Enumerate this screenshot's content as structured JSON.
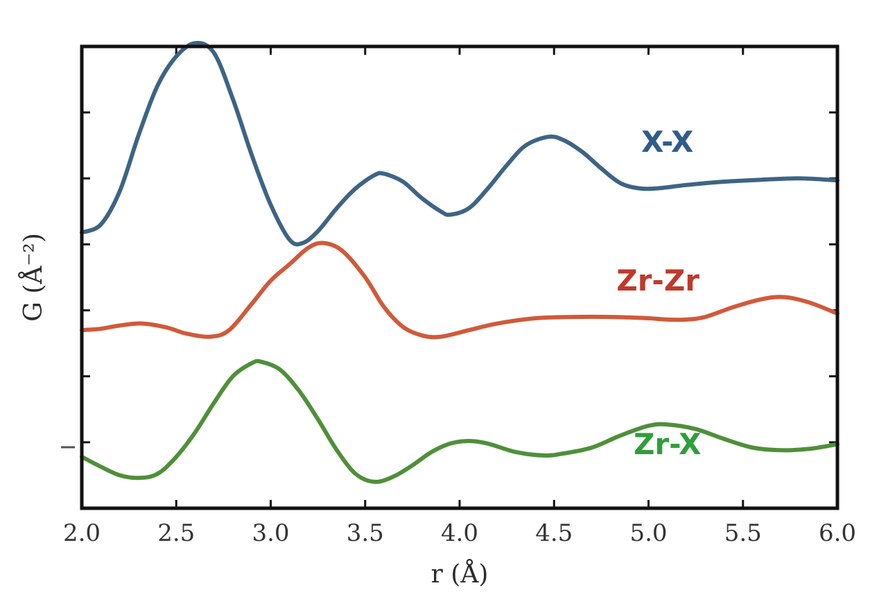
{
  "chart_data": {
    "type": "line",
    "xlabel": "r (Å)",
    "ylabel": "G (Å⁻²)",
    "xlim": [
      2.0,
      6.0
    ],
    "ylim": [
      0,
      7
    ],
    "x_ticks": [
      "2.0",
      "2.5",
      "3.0",
      "3.5",
      "4.0",
      "4.5",
      "5.0",
      "5.5",
      "6.0"
    ],
    "y_tick_values": [
      1,
      2,
      3,
      4,
      5,
      6
    ],
    "y_tick_labels": [],
    "grid": false,
    "legend": "inline labels on the right",
    "series": [
      {
        "name": "X-X",
        "color": "#3E6484",
        "points": [
          [
            2.0,
            4.18
          ],
          [
            2.1,
            4.3
          ],
          [
            2.2,
            4.8
          ],
          [
            2.3,
            5.65
          ],
          [
            2.4,
            6.4
          ],
          [
            2.5,
            6.85
          ],
          [
            2.6,
            7.05
          ],
          [
            2.7,
            6.9
          ],
          [
            2.8,
            6.2
          ],
          [
            2.9,
            5.35
          ],
          [
            3.0,
            4.6
          ],
          [
            3.1,
            4.07
          ],
          [
            3.17,
            4.02
          ],
          [
            3.25,
            4.2
          ],
          [
            3.35,
            4.55
          ],
          [
            3.45,
            4.85
          ],
          [
            3.55,
            5.05
          ],
          [
            3.6,
            5.07
          ],
          [
            3.7,
            4.95
          ],
          [
            3.8,
            4.7
          ],
          [
            3.9,
            4.5
          ],
          [
            3.95,
            4.45
          ],
          [
            4.05,
            4.55
          ],
          [
            4.15,
            4.85
          ],
          [
            4.25,
            5.2
          ],
          [
            4.35,
            5.5
          ],
          [
            4.47,
            5.63
          ],
          [
            4.55,
            5.58
          ],
          [
            4.65,
            5.4
          ],
          [
            4.75,
            5.15
          ],
          [
            4.85,
            4.93
          ],
          [
            4.95,
            4.85
          ],
          [
            5.05,
            4.85
          ],
          [
            5.2,
            4.9
          ],
          [
            5.4,
            4.95
          ],
          [
            5.6,
            4.98
          ],
          [
            5.8,
            5.0
          ],
          [
            6.0,
            4.97
          ]
        ]
      },
      {
        "name": "Zr-Zr",
        "color": "#D05A3A",
        "points": [
          [
            2.0,
            2.7
          ],
          [
            2.1,
            2.72
          ],
          [
            2.2,
            2.77
          ],
          [
            2.32,
            2.8
          ],
          [
            2.45,
            2.74
          ],
          [
            2.55,
            2.65
          ],
          [
            2.68,
            2.6
          ],
          [
            2.78,
            2.7
          ],
          [
            2.9,
            3.1
          ],
          [
            3.0,
            3.45
          ],
          [
            3.1,
            3.7
          ],
          [
            3.2,
            3.95
          ],
          [
            3.28,
            4.02
          ],
          [
            3.38,
            3.9
          ],
          [
            3.5,
            3.5
          ],
          [
            3.6,
            3.05
          ],
          [
            3.7,
            2.75
          ],
          [
            3.8,
            2.62
          ],
          [
            3.9,
            2.6
          ],
          [
            4.05,
            2.7
          ],
          [
            4.2,
            2.8
          ],
          [
            4.4,
            2.88
          ],
          [
            4.6,
            2.9
          ],
          [
            4.8,
            2.9
          ],
          [
            5.0,
            2.88
          ],
          [
            5.1,
            2.86
          ],
          [
            5.2,
            2.86
          ],
          [
            5.3,
            2.9
          ],
          [
            5.45,
            3.05
          ],
          [
            5.6,
            3.17
          ],
          [
            5.72,
            3.2
          ],
          [
            5.85,
            3.12
          ],
          [
            6.0,
            2.95
          ]
        ]
      },
      {
        "name": "Zr-X",
        "color": "#4F8F3A",
        "points": [
          [
            2.0,
            0.78
          ],
          [
            2.1,
            0.63
          ],
          [
            2.2,
            0.5
          ],
          [
            2.3,
            0.46
          ],
          [
            2.4,
            0.52
          ],
          [
            2.5,
            0.78
          ],
          [
            2.6,
            1.15
          ],
          [
            2.7,
            1.6
          ],
          [
            2.8,
            2.0
          ],
          [
            2.9,
            2.2
          ],
          [
            2.95,
            2.22
          ],
          [
            3.05,
            2.1
          ],
          [
            3.15,
            1.78
          ],
          [
            3.25,
            1.35
          ],
          [
            3.35,
            0.88
          ],
          [
            3.45,
            0.52
          ],
          [
            3.55,
            0.4
          ],
          [
            3.65,
            0.48
          ],
          [
            3.75,
            0.65
          ],
          [
            3.85,
            0.85
          ],
          [
            3.95,
            0.98
          ],
          [
            4.05,
            1.02
          ],
          [
            4.15,
            0.98
          ],
          [
            4.3,
            0.85
          ],
          [
            4.45,
            0.8
          ],
          [
            4.55,
            0.83
          ],
          [
            4.7,
            0.92
          ],
          [
            4.85,
            1.1
          ],
          [
            5.0,
            1.25
          ],
          [
            5.1,
            1.27
          ],
          [
            5.25,
            1.2
          ],
          [
            5.4,
            1.05
          ],
          [
            5.55,
            0.92
          ],
          [
            5.7,
            0.88
          ],
          [
            5.85,
            0.9
          ],
          [
            6.0,
            0.97
          ]
        ]
      }
    ],
    "annotations": [
      {
        "text": "X-X",
        "x": 5.1,
        "y": 5.4,
        "color": "#2F5C8C"
      },
      {
        "text": "Zr-Zr",
        "x": 5.05,
        "y": 3.3,
        "color": "#C0392B"
      },
      {
        "text": "Zr-X",
        "x": 5.1,
        "y": 0.82,
        "color": "#2E9E3A"
      }
    ]
  }
}
